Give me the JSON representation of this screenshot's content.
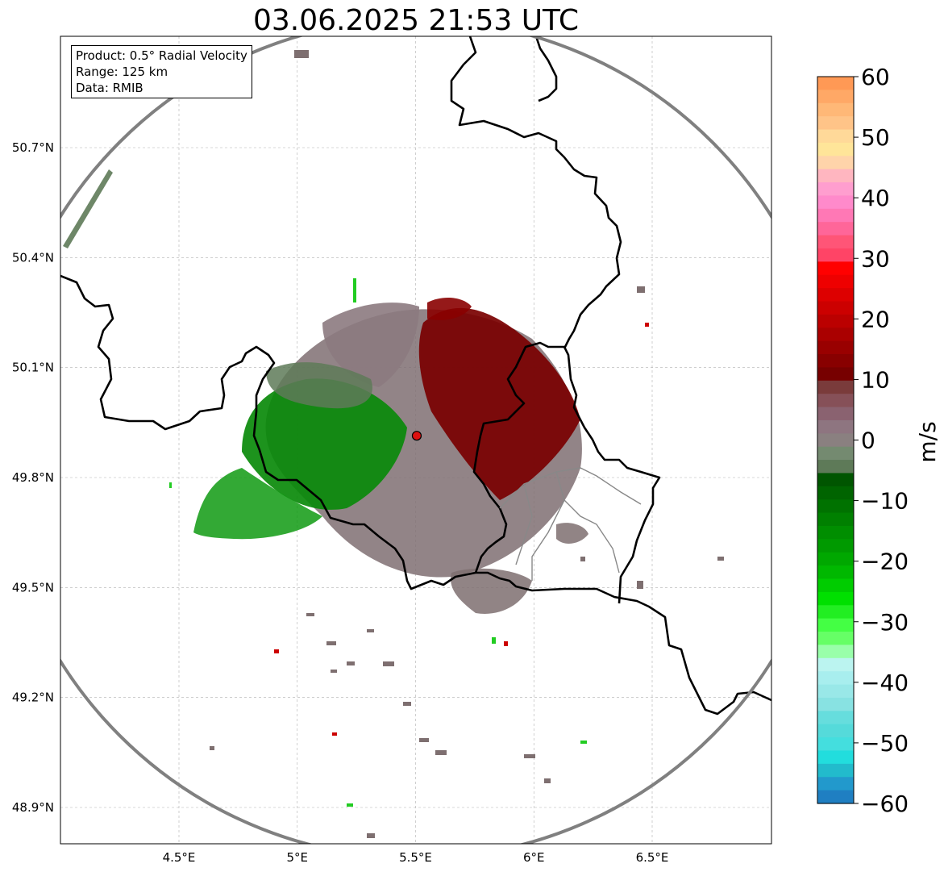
{
  "title": "03.06.2025 21:53 UTC",
  "info_box": {
    "product": "Product: 0.5° Radial Velocity",
    "range": "Range: 125 km",
    "data": "Data: RMIB"
  },
  "map": {
    "lon_range": [
      4.0,
      7.0
    ],
    "lat_range": [
      48.8,
      51.0
    ],
    "lon_ticks": [
      {
        "value": 4.5,
        "label": "4.5°E"
      },
      {
        "value": 5.0,
        "label": "5°E"
      },
      {
        "value": 5.5,
        "label": "5.5°E"
      },
      {
        "value": 6.0,
        "label": "6°E"
      },
      {
        "value": 6.5,
        "label": "6.5°E"
      }
    ],
    "lat_ticks": [
      {
        "value": 50.7,
        "label": "50.7°N"
      },
      {
        "value": 50.4,
        "label": "50.4°N"
      },
      {
        "value": 50.1,
        "label": "50.1°N"
      },
      {
        "value": 49.8,
        "label": "49.8°N"
      },
      {
        "value": 49.5,
        "label": "49.5°N"
      },
      {
        "value": 49.2,
        "label": "49.2°N"
      },
      {
        "value": 48.9,
        "label": "48.9°N"
      }
    ],
    "radar_site": {
      "lon": 5.505,
      "lat": 49.914
    },
    "range_km": 125,
    "grid": true
  },
  "colorbar": {
    "unit": "m/s",
    "min": -60,
    "max": 60,
    "tick_values": [
      60,
      50,
      40,
      30,
      20,
      10,
      0,
      -10,
      -20,
      -30,
      -40,
      -50,
      -60
    ],
    "tick_labels": [
      "60",
      "50",
      "40",
      "30",
      "20",
      "10",
      "0",
      "−10",
      "−20",
      "−30",
      "−40",
      "−50",
      "−60"
    ],
    "colors_top_to_bottom": [
      "#ff9955",
      "#ffa866",
      "#ffb877",
      "#ffc488",
      "#ffd999",
      "#ffe599",
      "#ffd4aa",
      "#ffb6c0",
      "#ff9ecf",
      "#ff8acb",
      "#ff78b5",
      "#ff6699",
      "#ff5577",
      "#ff4466",
      "#ff0000",
      "#ee0000",
      "#dd0000",
      "#cc0000",
      "#bb0000",
      "#aa0000",
      "#990000",
      "#880000",
      "#770000",
      "#7a3b3b",
      "#865058",
      "#8a6270",
      "#8e7580",
      "#8a8080",
      "#748a70",
      "#5e7a58",
      "#005500",
      "#006400",
      "#007200",
      "#008000",
      "#008e00",
      "#009a00",
      "#00a800",
      "#00b800",
      "#00cc00",
      "#00e000",
      "#22ee22",
      "#44ff44",
      "#66ff66",
      "#99ffaa",
      "#bbf4f0",
      "#a8eeee",
      "#99e8e8",
      "#88e2e2",
      "#66dddd",
      "#55dada",
      "#44dede",
      "#22dddd",
      "#22bbcc",
      "#2299cc",
      "#1f7fc2"
    ]
  }
}
